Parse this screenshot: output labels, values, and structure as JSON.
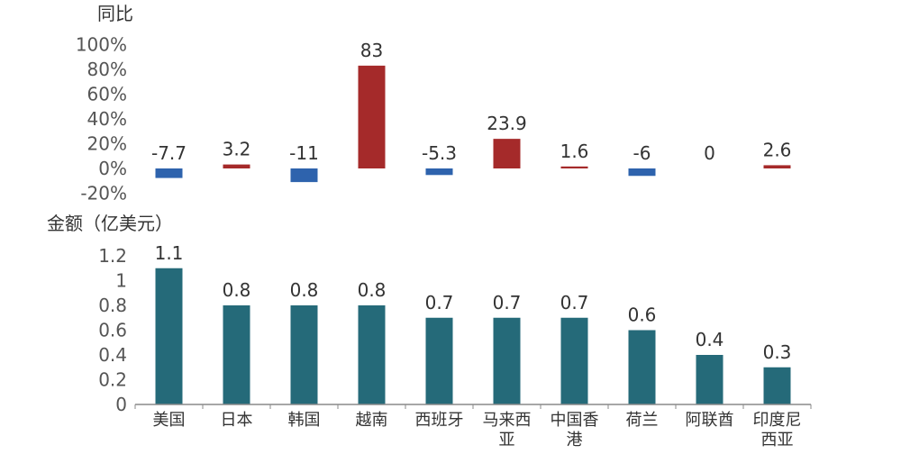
{
  "chart_data": [
    {
      "type": "bar",
      "ylabel": "同比",
      "ylim": [
        -20,
        100
      ],
      "y_ticks": [
        "100%",
        "80%",
        "60%",
        "40%",
        "20%",
        "0%",
        "-20%"
      ],
      "y_tick_values": [
        100,
        80,
        60,
        40,
        20,
        0,
        -20
      ],
      "categories": [
        "美国",
        "日本",
        "韩国",
        "越南",
        "西班牙",
        "马来西亚",
        "中国香港",
        "荷兰",
        "阿联酋",
        "印度尼西亚"
      ],
      "values": [
        -7.7,
        3.2,
        -11,
        83,
        -5.3,
        23.9,
        1.6,
        -6,
        0,
        2.6
      ],
      "value_labels": [
        "-7.7",
        "3.2",
        "-11",
        "83",
        "-5.3",
        "23.9",
        "1.6",
        "-6",
        "0",
        "2.6"
      ],
      "positive_color": "#a52a2a",
      "negative_color": "#2e63ad",
      "grid": false
    },
    {
      "type": "bar",
      "ylabel": "金额（亿美元）",
      "ylim": [
        0,
        1.2
      ],
      "y_ticks": [
        "1.2",
        "1",
        "0.8",
        "0.6",
        "0.4",
        "0.2",
        "0"
      ],
      "y_tick_values": [
        1.2,
        1,
        0.8,
        0.6,
        0.4,
        0.2,
        0
      ],
      "categories": [
        "美国",
        "日本",
        "韩国",
        "越南",
        "西班牙",
        "马来西亚",
        "中国香港",
        "荷兰",
        "阿联酋",
        "印度尼西亚"
      ],
      "category_lines": [
        [
          "美国"
        ],
        [
          "日本"
        ],
        [
          "韩国"
        ],
        [
          "越南"
        ],
        [
          "西班牙"
        ],
        [
          "马来西",
          "亚"
        ],
        [
          "中国香",
          "港"
        ],
        [
          "荷兰"
        ],
        [
          "阿联酋"
        ],
        [
          "印度尼",
          "西亚"
        ]
      ],
      "values": [
        1.1,
        0.8,
        0.8,
        0.8,
        0.7,
        0.7,
        0.7,
        0.6,
        0.4,
        0.3
      ],
      "value_labels": [
        "1.1",
        "0.8",
        "0.8",
        "0.8",
        "0.7",
        "0.7",
        "0.7",
        "0.6",
        "0.4",
        "0.3"
      ],
      "bar_color": "#256a79",
      "axis_color": "#8a8a8a",
      "grid": false
    }
  ]
}
